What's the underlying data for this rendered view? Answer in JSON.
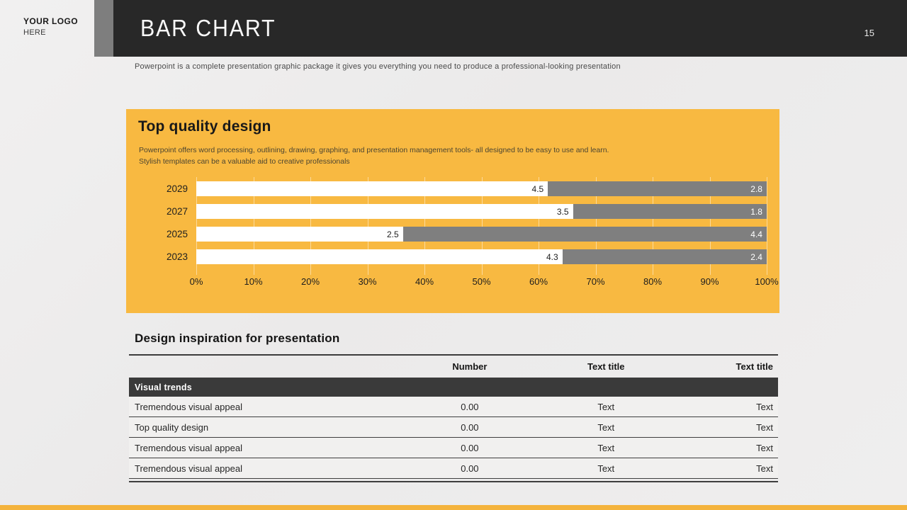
{
  "header": {
    "logo_line1": "YOUR LOGO",
    "logo_line2": "HERE",
    "title": "BAR CHART",
    "page_number": "15",
    "subtitle": "Powerpoint is a complete presentation graphic package it gives you everything you need to produce a professional-looking presentation"
  },
  "panel": {
    "title": "Top quality design",
    "description_lines": [
      "Powerpoint offers word processing, outlining, drawing, graphing, and presentation management tools- all designed to be easy to use and learn.",
      "Stylish templates can be a valuable aid to creative professionals"
    ]
  },
  "chart_data": {
    "type": "bar",
    "variant": "horizontal-100-percent-stacked",
    "categories": [
      "2029",
      "2027",
      "2025",
      "2023"
    ],
    "series": [
      {
        "name": "series-white",
        "color": "#ffffff",
        "values": [
          4.5,
          3.5,
          2.5,
          4.3
        ]
      },
      {
        "name": "series-gray",
        "color": "#7f7f7f",
        "values": [
          2.8,
          1.8,
          4.4,
          2.4
        ]
      }
    ],
    "x_ticks": [
      "0%",
      "10%",
      "20%",
      "30%",
      "40%",
      "50%",
      "60%",
      "70%",
      "80%",
      "90%",
      "100%"
    ],
    "xlim": [
      0,
      100
    ],
    "grid": true,
    "legend": "none",
    "data_labels": "inside-end"
  },
  "table": {
    "heading": "Design inspiration for presentation",
    "columns": [
      "",
      "Number",
      "Text title",
      "Text title"
    ],
    "group_row": "Visual trends",
    "rows": [
      [
        "Tremendous visual appeal",
        "0.00",
        "Text",
        "Text"
      ],
      [
        "Top quality design",
        "0.00",
        "Text",
        "Text"
      ],
      [
        "Tremendous visual appeal",
        "0.00",
        "Text",
        "Text"
      ],
      [
        "Tremendous visual appeal",
        "0.00",
        "Text",
        "Text"
      ]
    ]
  },
  "colors": {
    "accent_yellow": "#f8b941",
    "header_dark": "#282828",
    "strip_gray": "#7e7e7e",
    "bar_gray": "#7f7f7f",
    "table_group_dark": "#3a3a3a"
  }
}
